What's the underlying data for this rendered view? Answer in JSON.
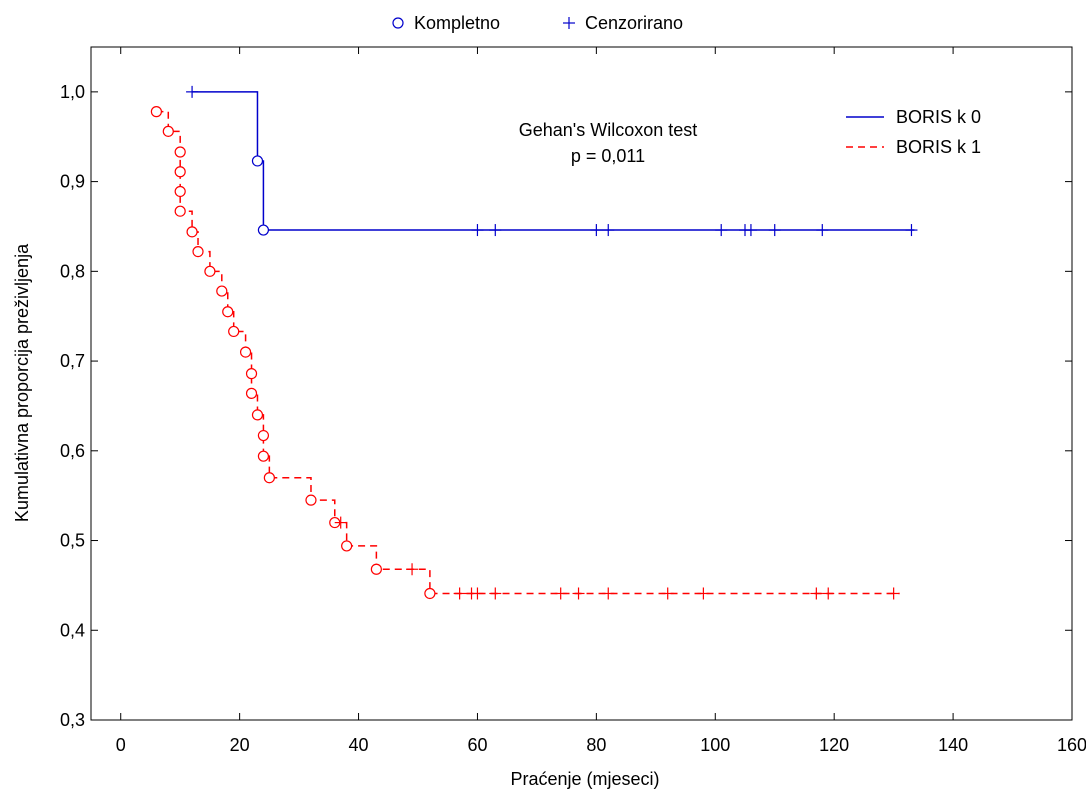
{
  "chart_data": {
    "type": "line",
    "subtype": "kaplan-meier step",
    "xlabel": "Praćenje (mjeseci)",
    "ylabel": "Kumulativna proporcija preživljenja",
    "xlim": [
      -5,
      160
    ],
    "ylim": [
      0.3,
      1.05
    ],
    "xticks": [
      0,
      20,
      40,
      60,
      80,
      100,
      120,
      140,
      160
    ],
    "xtick_labels": [
      "0",
      "20",
      "40",
      "60",
      "80",
      "100",
      "120",
      "140",
      "160"
    ],
    "yticks": [
      0.3,
      0.4,
      0.5,
      0.6,
      0.7,
      0.8,
      0.9,
      1.0
    ],
    "ytick_labels": [
      "0,3",
      "0,4",
      "0,5",
      "0,6",
      "0,7",
      "0,8",
      "0,9",
      "1,0"
    ],
    "grid": false,
    "marker_legend": {
      "placement": "top-center",
      "complete_label": "Kompletno",
      "censored_label": "Cenzorirano"
    },
    "series_legend_placement": "top-right",
    "annotation": {
      "line1": "Gehan's Wilcoxon test",
      "line2": "p = 0,011"
    },
    "series": [
      {
        "name": "BORIS k 0",
        "color": "#0000cc",
        "dash": "solid",
        "steps": [
          [
            12,
            1.0
          ],
          [
            23,
            0.923
          ],
          [
            24,
            0.846
          ],
          [
            133.5,
            0.846
          ]
        ],
        "events": [
          [
            23,
            0.923
          ],
          [
            24,
            0.846
          ]
        ],
        "censored": [
          [
            12,
            1.0
          ],
          [
            60,
            0.846
          ],
          [
            63,
            0.846
          ],
          [
            80,
            0.846
          ],
          [
            82,
            0.846
          ],
          [
            101,
            0.846
          ],
          [
            105,
            0.846
          ],
          [
            106,
            0.846
          ],
          [
            110,
            0.846
          ],
          [
            118,
            0.846
          ],
          [
            133,
            0.846
          ]
        ]
      },
      {
        "name": "BORIS k 1",
        "color": "#ff0000",
        "dash": "dashed",
        "steps": [
          [
            6,
            0.978
          ],
          [
            8,
            0.956
          ],
          [
            10,
            0.933
          ],
          [
            10,
            0.911
          ],
          [
            10,
            0.889
          ],
          [
            10,
            0.867
          ],
          [
            12,
            0.844
          ],
          [
            13,
            0.822
          ],
          [
            15,
            0.8
          ],
          [
            17,
            0.778
          ],
          [
            18,
            0.755
          ],
          [
            19,
            0.733
          ],
          [
            21,
            0.71
          ],
          [
            22,
            0.686
          ],
          [
            22,
            0.664
          ],
          [
            23,
            0.64
          ],
          [
            24,
            0.617
          ],
          [
            24,
            0.594
          ],
          [
            25,
            0.57
          ],
          [
            32,
            0.545
          ],
          [
            36,
            0.52
          ],
          [
            38,
            0.494
          ],
          [
            43,
            0.468
          ],
          [
            52,
            0.441
          ],
          [
            131,
            0.441
          ]
        ],
        "events": [
          [
            6,
            0.978
          ],
          [
            8,
            0.956
          ],
          [
            10,
            0.933
          ],
          [
            10,
            0.911
          ],
          [
            10,
            0.889
          ],
          [
            10,
            0.867
          ],
          [
            12,
            0.844
          ],
          [
            13,
            0.822
          ],
          [
            15,
            0.8
          ],
          [
            17,
            0.778
          ],
          [
            18,
            0.755
          ],
          [
            19,
            0.733
          ],
          [
            21,
            0.71
          ],
          [
            22,
            0.686
          ],
          [
            22,
            0.664
          ],
          [
            23,
            0.64
          ],
          [
            24,
            0.617
          ],
          [
            24,
            0.594
          ],
          [
            25,
            0.57
          ],
          [
            32,
            0.545
          ],
          [
            36,
            0.52
          ],
          [
            38,
            0.494
          ],
          [
            43,
            0.468
          ],
          [
            52,
            0.441
          ]
        ],
        "censored": [
          [
            37,
            0.52
          ],
          [
            49,
            0.468
          ],
          [
            57,
            0.441
          ],
          [
            59,
            0.441
          ],
          [
            60,
            0.441
          ],
          [
            63,
            0.441
          ],
          [
            74,
            0.441
          ],
          [
            77,
            0.441
          ],
          [
            82,
            0.441
          ],
          [
            92,
            0.441
          ],
          [
            98,
            0.441
          ],
          [
            117,
            0.441
          ],
          [
            119,
            0.441
          ],
          [
            130,
            0.441
          ]
        ]
      }
    ]
  }
}
